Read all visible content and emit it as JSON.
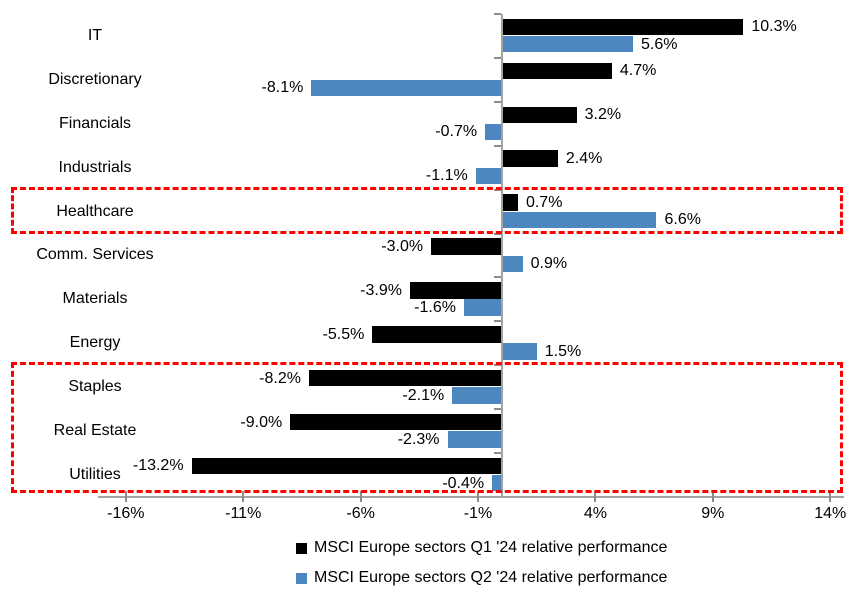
{
  "chart_data": {
    "type": "bar",
    "orientation": "horizontal",
    "title": "",
    "categories": [
      "IT",
      "Discretionary",
      "Financials",
      "Industrials",
      "Healthcare",
      "Comm. Services",
      "Materials",
      "Energy",
      "Staples",
      "Real Estate",
      "Utilities"
    ],
    "series": [
      {
        "name": "MSCI Europe sectors Q1 '24 relative performance",
        "color": "#000000",
        "values": [
          10.3,
          4.7,
          3.2,
          2.4,
          0.7,
          -3.0,
          -3.9,
          -5.5,
          -8.2,
          -9.0,
          -13.2
        ],
        "labels": [
          "10.3%",
          "4.7%",
          "3.2%",
          "2.4%",
          "0.7%",
          "-3.0%",
          "-3.9%",
          "-5.5%",
          "-8.2%",
          "-9.0%",
          "-13.2%"
        ]
      },
      {
        "name": "MSCI Europe sectors Q2 '24 relative performance",
        "color": "#4E86C0",
        "values": [
          5.6,
          -8.1,
          -0.7,
          -1.1,
          6.6,
          0.9,
          -1.6,
          1.5,
          -2.1,
          -2.3,
          -0.4
        ],
        "labels": [
          "5.6%",
          "-8.1%",
          "-0.7%",
          "-1.1%",
          "6.6%",
          "0.9%",
          "-1.6%",
          "1.5%",
          "-2.1%",
          "-2.3%",
          "-0.4%"
        ]
      }
    ],
    "x_ticks": [
      {
        "value": -16,
        "label": "-16%"
      },
      {
        "value": -11,
        "label": "-11%"
      },
      {
        "value": -6,
        "label": "-6%"
      },
      {
        "value": -1,
        "label": "-1%"
      },
      {
        "value": 4,
        "label": "4%"
      },
      {
        "value": 9,
        "label": "9%"
      },
      {
        "value": 14,
        "label": "14%"
      }
    ],
    "xlim": [
      -17.1,
      14.5
    ],
    "grid": false,
    "legend_position": "bottom",
    "annotation_color": "#FF0000",
    "highlight_boxes": [
      {
        "first_category": "Healthcare",
        "last_category": "Healthcare",
        "color": "#FF0000"
      },
      {
        "first_category": "Staples",
        "last_category": "Utilities",
        "color": "#FF0000"
      }
    ]
  }
}
